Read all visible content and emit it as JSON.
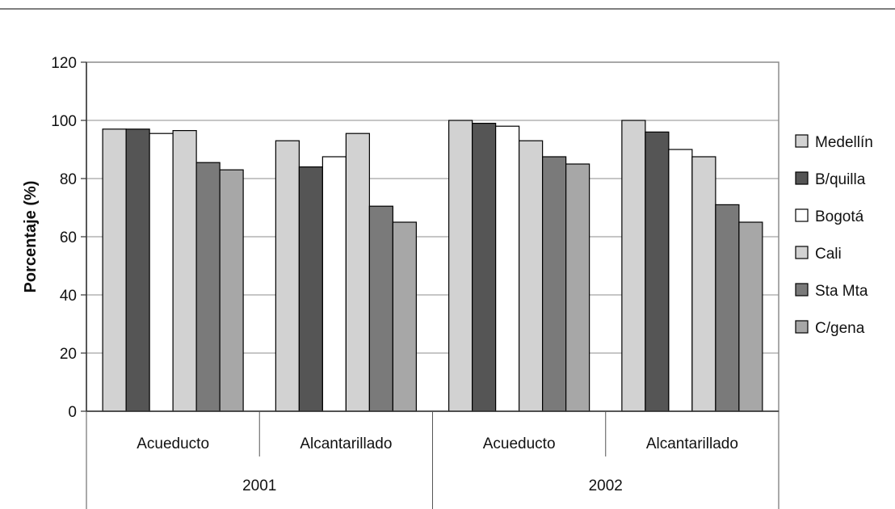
{
  "chart_data": {
    "type": "bar",
    "title": "",
    "ylabel": "Porcentaje (%)",
    "xlabel": "",
    "ylim": [
      0,
      120
    ],
    "yticks": [
      "0",
      "20",
      "40",
      "60",
      "80",
      "100",
      "120"
    ],
    "grid": true,
    "legend_position": "right",
    "years": [
      "2001",
      "2002"
    ],
    "categories": [
      "Acueducto",
      "Alcantarillado",
      "Acueducto",
      "Alcantarillado"
    ],
    "category_year_index": [
      0,
      0,
      1,
      1
    ],
    "series": [
      {
        "name": "Medellín",
        "color": "#d2d2d2",
        "values": [
          97,
          93,
          100,
          100
        ]
      },
      {
        "name": "B/quilla",
        "color": "#555555",
        "values": [
          97,
          84,
          99,
          96
        ]
      },
      {
        "name": "Bogotá",
        "color": "#ffffff",
        "values": [
          95.5,
          87.5,
          98,
          90
        ]
      },
      {
        "name": "Cali",
        "color": "#d2d2d2",
        "values": [
          96.5,
          95.5,
          93,
          87.5
        ]
      },
      {
        "name": "Sta Mta",
        "color": "#7a7a7a",
        "values": [
          85.5,
          70.5,
          87.5,
          71
        ]
      },
      {
        "name": "C/gena",
        "color": "#a7a7a7",
        "values": [
          83,
          65,
          85,
          65
        ]
      }
    ]
  }
}
